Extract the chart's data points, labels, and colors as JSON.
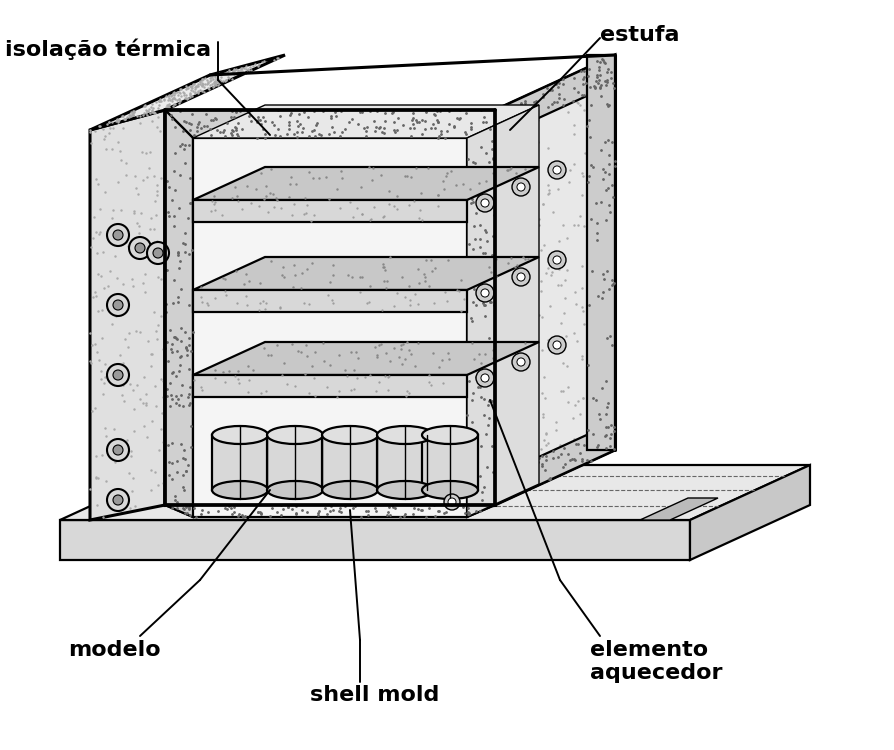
{
  "bg_color": "#ffffff",
  "lc": "#000000",
  "labels": {
    "isolacao_termica": "isolação térmica",
    "estufa": "estufa",
    "modelo": "modelo",
    "shell_mold": "shell mold",
    "elemento_aquecedor": "elemento\naquecedor"
  },
  "stipple_seed": 42,
  "lw_thick": 2.2,
  "lw_med": 1.6,
  "lw_thin": 1.0
}
